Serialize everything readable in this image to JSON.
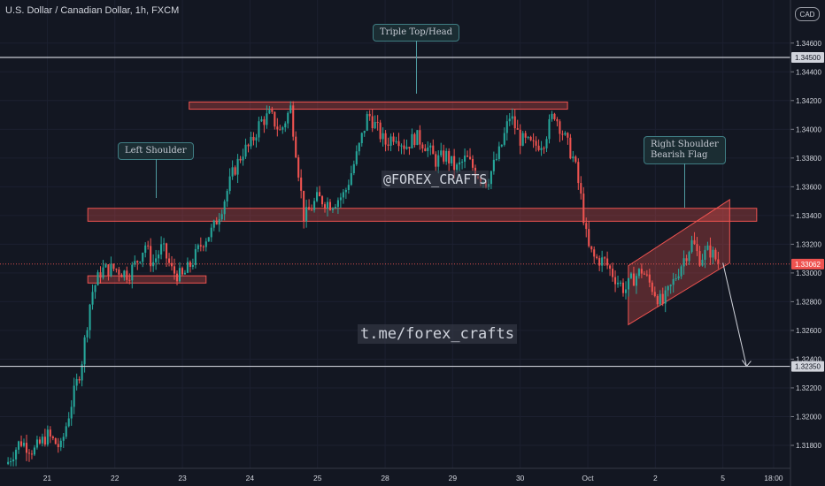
{
  "header": {
    "symbol_title": "U.S. Dollar / Canadian Dollar, 1h, FXCM",
    "currency": "CAD"
  },
  "watermarks": {
    "top": "@FOREX_CRAFTS",
    "bottom": "t.me/forex_crafts"
  },
  "annotations": {
    "left_shoulder": "Left Shoulder",
    "triple_top": "Triple Top/Head",
    "right_shoulder_l1": "Right Shoulder",
    "right_shoulder_l2": "Bearish Flag"
  },
  "colors": {
    "background": "#131722",
    "up": "#26a69a",
    "down": "#ef5350",
    "zone_fill": "rgba(239,83,80,0.30)",
    "zone_border": "#ef5350",
    "hline": "#c9ccd4",
    "text": "#d1d4dc"
  },
  "chart_data": {
    "type": "candlestick",
    "ylim": [
      1.3164,
      1.349
    ],
    "y_ticks": [
      "1.31800",
      "1.32000",
      "1.32200",
      "1.32400",
      "1.32600",
      "1.32800",
      "1.33000",
      "1.33200",
      "1.33400",
      "1.33600",
      "1.33800",
      "1.34000",
      "1.34200",
      "1.34400",
      "1.34600"
    ],
    "x_ticks": [
      {
        "label": "21",
        "t": 1.0
      },
      {
        "label": "22",
        "t": 2.0
      },
      {
        "label": "23",
        "t": 3.0
      },
      {
        "label": "24",
        "t": 4.0
      },
      {
        "label": "25",
        "t": 5.0
      },
      {
        "label": "28",
        "t": 6.0
      },
      {
        "label": "29",
        "t": 7.0
      },
      {
        "label": "30",
        "t": 8.0
      },
      {
        "label": "Oct",
        "t": 9.0
      },
      {
        "label": "2",
        "t": 10.0
      },
      {
        "label": "5",
        "t": 11.0
      },
      {
        "label": "18:00",
        "t": 11.75
      }
    ],
    "t_range": [
      0.3,
      12.0
    ],
    "candle_t_range": [
      0.4,
      10.95
    ],
    "price_badges": [
      {
        "label": "1.34500",
        "value": 1.345,
        "style": "line"
      },
      {
        "label": "1.33062",
        "value": 1.33062,
        "style": "current"
      },
      {
        "label": "1.32350",
        "value": 1.3235,
        "style": "line"
      }
    ],
    "horizontal_lines": [
      1.345,
      1.3235
    ],
    "current_price": 1.33062,
    "zones": [
      {
        "t0": 1.6,
        "t1": 3.35,
        "y0": 1.3293,
        "y1": 1.3298
      },
      {
        "t0": 1.6,
        "t1": 11.5,
        "y0": 1.3336,
        "y1": 1.3345
      },
      {
        "t0": 3.1,
        "t1": 8.7,
        "y0": 1.3414,
        "y1": 1.3419
      }
    ],
    "flag_channel": [
      [
        9.6,
        1.3264
      ],
      [
        11.1,
        1.3307
      ],
      [
        11.1,
        1.3351
      ],
      [
        9.6,
        1.3305
      ]
    ],
    "projection_arrow": {
      "from": [
        11.0,
        1.3307
      ],
      "to": [
        11.35,
        1.3235
      ]
    },
    "price_path": [
      [
        0.4,
        1.3167
      ],
      [
        0.6,
        1.3183
      ],
      [
        0.8,
        1.3176
      ],
      [
        1.0,
        1.3187
      ],
      [
        1.2,
        1.3178
      ],
      [
        1.35,
        1.3208
      ],
      [
        1.5,
        1.3235
      ],
      [
        1.65,
        1.3285
      ],
      [
        1.8,
        1.3302
      ],
      [
        2.0,
        1.3303
      ],
      [
        2.2,
        1.3299
      ],
      [
        2.35,
        1.331
      ],
      [
        2.45,
        1.332
      ],
      [
        2.55,
        1.3306
      ],
      [
        2.7,
        1.3318
      ],
      [
        2.85,
        1.3301
      ],
      [
        3.0,
        1.3297
      ],
      [
        3.15,
        1.3308
      ],
      [
        3.3,
        1.3322
      ],
      [
        3.45,
        1.333
      ],
      [
        3.6,
        1.3348
      ],
      [
        3.75,
        1.337
      ],
      [
        3.9,
        1.3385
      ],
      [
        4.0,
        1.3388
      ],
      [
        4.15,
        1.3405
      ],
      [
        4.3,
        1.341
      ],
      [
        4.45,
        1.3398
      ],
      [
        4.6,
        1.3415
      ],
      [
        4.7,
        1.3378
      ],
      [
        4.8,
        1.3338
      ],
      [
        5.0,
        1.3352
      ],
      [
        5.2,
        1.3348
      ],
      [
        5.4,
        1.3355
      ],
      [
        5.6,
        1.3385
      ],
      [
        5.75,
        1.3411
      ],
      [
        5.85,
        1.3403
      ],
      [
        6.0,
        1.339
      ],
      [
        6.15,
        1.3397
      ],
      [
        6.3,
        1.3388
      ],
      [
        6.45,
        1.3395
      ],
      [
        6.6,
        1.3389
      ],
      [
        6.75,
        1.3378
      ],
      [
        6.9,
        1.3382
      ],
      [
        7.05,
        1.3372
      ],
      [
        7.2,
        1.338
      ],
      [
        7.35,
        1.337
      ],
      [
        7.5,
        1.3363
      ],
      [
        7.7,
        1.3385
      ],
      [
        7.85,
        1.341
      ],
      [
        8.0,
        1.3393
      ],
      [
        8.2,
        1.3388
      ],
      [
        8.35,
        1.3392
      ],
      [
        8.5,
        1.3412
      ],
      [
        8.65,
        1.3395
      ],
      [
        8.8,
        1.3378
      ],
      [
        8.9,
        1.3352
      ],
      [
        9.0,
        1.3318
      ],
      [
        9.1,
        1.331
      ],
      [
        9.25,
        1.3308
      ],
      [
        9.4,
        1.3297
      ],
      [
        9.55,
        1.3288
      ],
      [
        9.65,
        1.3295
      ],
      [
        9.8,
        1.3302
      ],
      [
        9.95,
        1.329
      ],
      [
        10.1,
        1.3278
      ],
      [
        10.25,
        1.3292
      ],
      [
        10.4,
        1.3308
      ],
      [
        10.55,
        1.3322
      ],
      [
        10.65,
        1.331
      ],
      [
        10.8,
        1.3316
      ],
      [
        10.95,
        1.3306
      ]
    ]
  }
}
